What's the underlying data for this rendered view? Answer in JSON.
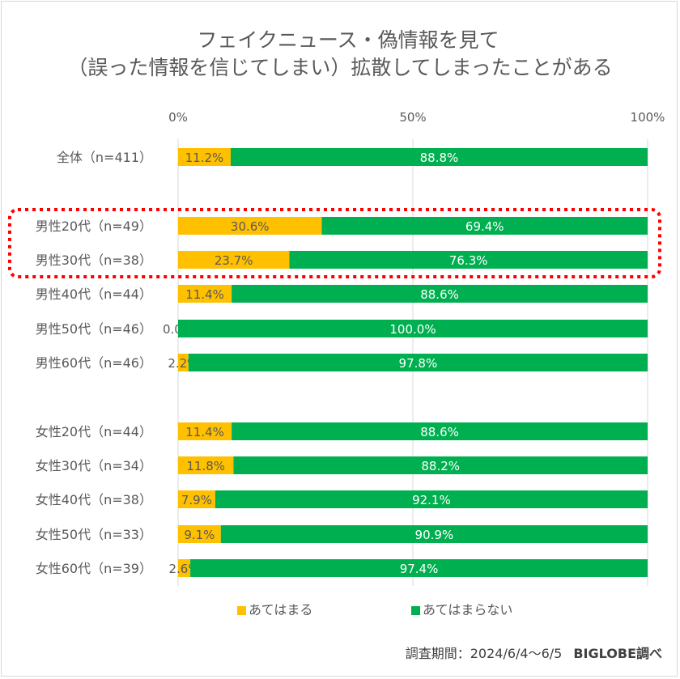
{
  "chart_data": {
    "type": "bar",
    "orientation": "horizontal",
    "stacked": true,
    "title_lines": [
      "フェイクニュース・偽情報を見て",
      "（誤った情報を信じてしまい）拡散してしまったことがある"
    ],
    "x_ticks": [
      "0%",
      "50%",
      "100%"
    ],
    "x_tick_values": [
      0,
      50,
      100
    ],
    "xlim": [
      0,
      100
    ],
    "grid": true,
    "legend_position": "bottom",
    "categories": [
      "全体（n=411）",
      "男性20代（n=49）",
      "男性30代（n=38）",
      "男性40代（n=44）",
      "男性50代（n=46）",
      "男性60代（n=46）",
      "女性20代（n=44）",
      "女性30代（n=34）",
      "女性40代（n=38）",
      "女性50代（n=33）",
      "女性60代（n=39）"
    ],
    "series": [
      {
        "name": "あてはまる",
        "color": "#FFC000",
        "values": [
          11.2,
          30.6,
          23.7,
          11.4,
          0.0,
          2.2,
          11.4,
          11.8,
          7.9,
          9.1,
          2.6
        ],
        "labels": [
          "11.2%",
          "30.6%",
          "23.7%",
          "11.4%",
          "0.0%",
          "2.2%",
          "11.4%",
          "11.8%",
          "7.9%",
          "9.1%",
          "2.6%"
        ]
      },
      {
        "name": "あてはまらない",
        "color": "#00B050",
        "values": [
          88.8,
          69.4,
          76.3,
          88.6,
          100.0,
          97.8,
          88.6,
          88.2,
          92.1,
          90.9,
          97.4
        ],
        "labels": [
          "88.8%",
          "69.4%",
          "76.3%",
          "88.6%",
          "100.0%",
          "97.8%",
          "88.6%",
          "88.2%",
          "92.1%",
          "90.9%",
          "97.4%"
        ]
      }
    ],
    "highlight": {
      "categories": [
        "男性20代（n=49）",
        "男性30代（n=38）"
      ],
      "color": "#FF0000",
      "style": "dotted"
    }
  },
  "footer": {
    "period": "調査期間：2024/6/4～6/5",
    "source": "BIGLOBE調べ"
  }
}
